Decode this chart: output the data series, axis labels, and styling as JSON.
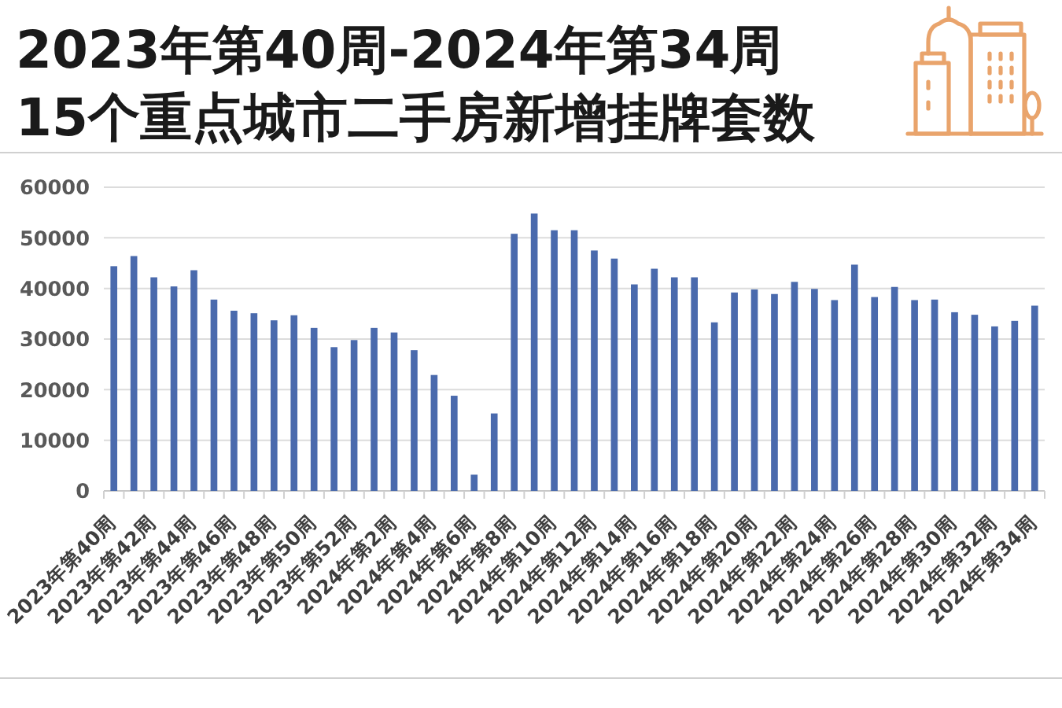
{
  "chart_data": {
    "type": "bar",
    "title": "2023年第40周-2024年第34周",
    "subtitle": "15个重点城市二手房新增挂牌套数",
    "categories": [
      "2023年第40周",
      null,
      "2023年第42周",
      null,
      "2023年第44周",
      null,
      "2023年第46周",
      null,
      "2023年第48周",
      null,
      "2023年第50周",
      null,
      "2023年第52周",
      null,
      "2024年第2周",
      null,
      "2024年第4周",
      null,
      "2024年第6周",
      null,
      "2024年第8周",
      null,
      "2024年第10周",
      null,
      "2024年第12周",
      null,
      "2024年第14周",
      null,
      "2024年第16周",
      null,
      "2024年第18周",
      null,
      "2024年第20周",
      null,
      "2024年第22周",
      null,
      "2024年第24周",
      null,
      "2024年第26周",
      null,
      "2024年第28周",
      null,
      "2024年第30周",
      null,
      "2024年第32周",
      null,
      "2024年第34周"
    ],
    "values": [
      44400,
      46400,
      42200,
      40400,
      43600,
      37800,
      35600,
      35100,
      33700,
      34700,
      32200,
      28400,
      29800,
      32200,
      31300,
      27800,
      22900,
      18800,
      3200,
      15300,
      50800,
      54800,
      51500,
      51500,
      47500,
      45900,
      40800,
      43900,
      42200,
      42200,
      33300,
      39200,
      39800,
      38900,
      41300,
      39900,
      37700,
      44700,
      38300,
      40300,
      37700,
      37800,
      35300,
      34800,
      32500,
      33600,
      36600
    ],
    "color": "#4a6aad",
    "ylim": [
      0,
      60000
    ],
    "yticks": [
      0,
      10000,
      20000,
      30000,
      40000,
      50000,
      60000
    ],
    "grid": "y"
  }
}
